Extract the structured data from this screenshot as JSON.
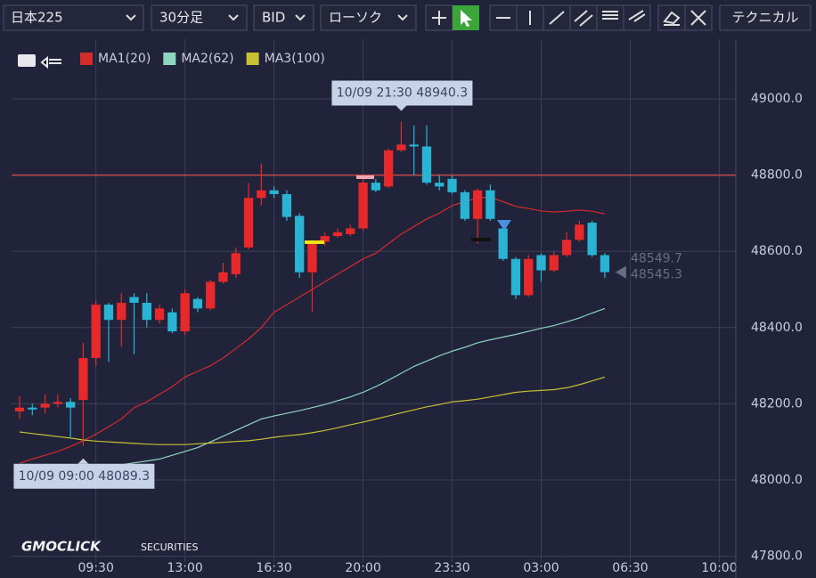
{
  "toolbar": {
    "symbol": "日本225",
    "interval": "30分足",
    "side": "BID",
    "style": "ローソク",
    "technical": "テクニカル"
  },
  "logo": {
    "brand": "GMOCLICK",
    "sub": "SECURITIES"
  },
  "chart_data": {
    "type": "candlestick",
    "categories": [
      null,
      null,
      null,
      null,
      null,
      null,
      null,
      null,
      null,
      null,
      null,
      null,
      null,
      null,
      null,
      null,
      null,
      null,
      null,
      null,
      null,
      null,
      null,
      null,
      null,
      null,
      null,
      null,
      null,
      null,
      null,
      null,
      null,
      null,
      null,
      null,
      null,
      null,
      null,
      null,
      null,
      null,
      null,
      null,
      null,
      null,
      null
    ],
    "open": [
      48180,
      48190,
      48190,
      48200,
      48205,
      48210,
      48320,
      48460,
      48420,
      48480,
      48465,
      48420,
      48440,
      48390,
      48475,
      48450,
      48520,
      48540,
      48610,
      48740,
      48760,
      48750,
      48693,
      48545,
      48625,
      48640,
      48645,
      48660,
      48780,
      48770,
      48865,
      48880,
      48875,
      48780,
      48790,
      48755,
      48685,
      48760,
      48660,
      48580,
      48485,
      48590,
      48550,
      48590,
      48630,
      48675,
      48590
    ],
    "high": [
      48220,
      48200,
      48225,
      48225,
      48215,
      48360,
      48470,
      48465,
      48490,
      48490,
      48490,
      48460,
      48450,
      48500,
      48480,
      48525,
      48570,
      48610,
      48780,
      48830,
      48770,
      48760,
      48700,
      48630,
      48650,
      48660,
      48670,
      48800,
      48790,
      48870,
      48940.3,
      48930,
      48930,
      48800,
      48800,
      48760,
      48765,
      48775,
      48680,
      48585,
      48590,
      48595,
      48600,
      48650,
      48680,
      48680,
      48595
    ],
    "low": [
      48160,
      48170,
      48175,
      48190,
      48110,
      48089.3,
      48300,
      48310,
      48350,
      48330,
      48400,
      48410,
      48385,
      48380,
      48440,
      48445,
      48515,
      48530,
      48605,
      48720,
      48740,
      48680,
      48530,
      48441,
      48615,
      48635,
      48640,
      48655,
      48755,
      48765,
      48860,
      48800,
      48775,
      48760,
      48750,
      48680,
      48620,
      48680,
      48575,
      48475,
      48480,
      48520,
      48545,
      48585,
      48625,
      48585,
      48530
    ],
    "close": [
      48190,
      48185,
      48200,
      48205,
      48190,
      48320,
      48460,
      48420,
      48465,
      48465,
      48420,
      48450,
      48390,
      48490,
      48450,
      48520,
      48545,
      48595,
      48740,
      48760,
      48750,
      48690,
      48545,
      48620,
      48640,
      48650,
      48660,
      48780,
      48760,
      48865,
      48880,
      48875,
      48780,
      48770,
      48755,
      48685,
      48760,
      48685,
      48580,
      48485,
      48580,
      48550,
      48590,
      48630,
      48670,
      48590,
      48545.3
    ],
    "up_color": "#e8292b",
    "down_color": "#2bb3d3",
    "series": [
      {
        "name": "MA1(20)",
        "color": "#d42b2b",
        "values": [
          48044,
          48055,
          48065,
          48075,
          48088,
          48103,
          48120,
          48140,
          48160,
          48190,
          48205,
          48225,
          48245,
          48270,
          48285,
          48300,
          48320,
          48345,
          48370,
          48400,
          48440,
          48460,
          48480,
          48500,
          48520,
          48540,
          48560,
          48580,
          48595,
          48620,
          48645,
          48665,
          48685,
          48700,
          48720,
          48730,
          48740,
          48742,
          48730,
          48718,
          48712,
          48706,
          48703,
          48705,
          48708,
          48705,
          48698
        ]
      },
      {
        "name": "MA2(62)",
        "color": "#8fd6c0",
        "values": [
          48010,
          48012,
          48015,
          48017,
          48020,
          48025,
          48030,
          48035,
          48040,
          48045,
          48050,
          48055,
          48065,
          48075,
          48085,
          48100,
          48115,
          48130,
          48145,
          48160,
          48168,
          48175,
          48182,
          48190,
          48198,
          48208,
          48218,
          48230,
          48245,
          48262,
          48280,
          48298,
          48312,
          48326,
          48338,
          48348,
          48360,
          48368,
          48375,
          48382,
          48390,
          48398,
          48405,
          48415,
          48425,
          48438,
          48450
        ]
      },
      {
        "name": "MA3(100)",
        "color": "#c8c033",
        "values": [
          48126,
          48122,
          48118,
          48114,
          48110,
          48105,
          48102,
          48100,
          48098,
          48096,
          48094,
          48093,
          48093,
          48093,
          48095,
          48097,
          48099,
          48101,
          48103,
          48107,
          48112,
          48116,
          48119,
          48124,
          48130,
          48137,
          48145,
          48152,
          48160,
          48168,
          48176,
          48184,
          48192,
          48198,
          48205,
          48208,
          48212,
          48218,
          48224,
          48230,
          48233,
          48235,
          48237,
          48242,
          48250,
          48260,
          48270
        ]
      }
    ],
    "xlim": [
      -0.63,
      56.3
    ],
    "xticks": [
      {
        "value": 6,
        "label": "09:30"
      },
      {
        "value": 13,
        "label": "13:00"
      },
      {
        "value": 20,
        "label": "16:30"
      },
      {
        "value": 27,
        "label": "20:00"
      },
      {
        "value": 34,
        "label": "23:30"
      },
      {
        "value": 41,
        "label": "03:00"
      },
      {
        "value": 48,
        "label": "06:30"
      },
      {
        "value": 55,
        "label": "10:00"
      }
    ],
    "ylim": [
      47785,
      49070
    ],
    "yticks": [
      {
        "value": 47800,
        "label": "47800.0"
      },
      {
        "value": 48000,
        "label": "48000.0"
      },
      {
        "value": 48200,
        "label": "48200.0"
      },
      {
        "value": 48400,
        "label": "48400.0"
      },
      {
        "value": 48600,
        "label": "48600.0"
      },
      {
        "value": 48800,
        "label": "48800.0"
      },
      {
        "value": 49000,
        "label": "49000.0"
      }
    ],
    "grid": true,
    "hline": {
      "value": 48800,
      "color": "#c24a4a"
    },
    "annotations": [
      {
        "text": "10/09 21:30 48940.3",
        "index": 30,
        "value": 48940.3,
        "position": "above"
      },
      {
        "text": "10/09 09:00 48089.3",
        "index": 5,
        "value": 48089.3,
        "position": "below"
      }
    ],
    "price_labels": [
      "48549.7",
      "48545.3"
    ]
  }
}
